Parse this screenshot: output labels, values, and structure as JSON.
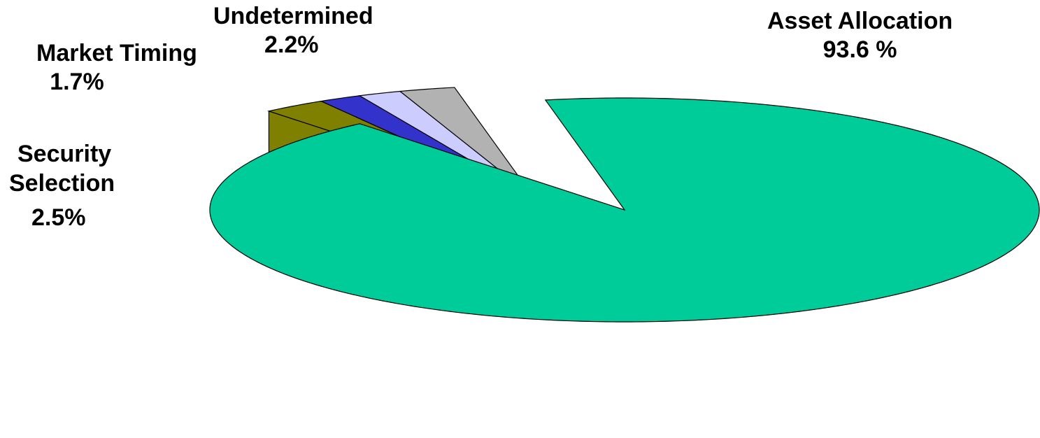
{
  "chart_data": {
    "type": "pie",
    "style": "3d-exploded",
    "slices": [
      {
        "label": "Asset Allocation",
        "value_text": "93.6 %",
        "value": 93.6,
        "color": "#00CC99",
        "side_color": "#EE9A22"
      },
      {
        "label": "Undetermined",
        "value_text": "2.2%",
        "value": 2.2,
        "color": "#B2B2B2",
        "side_color": "#7F7F7F"
      },
      {
        "label": "Market Timing",
        "value_text": "1.7%",
        "value": 1.7,
        "color": "#CCCCFF",
        "side_color": "#9999CC"
      },
      {
        "label": "",
        "value_text": "",
        "value": 1.7,
        "color": "#3333CC",
        "side_color": "#1F1F99"
      },
      {
        "label": "Security Selection",
        "value_text": "2.5%",
        "value": 2.5,
        "color": "#808000",
        "side_color": "#5F5F00"
      }
    ],
    "label_lines": {
      "security_selection": [
        "Security",
        "Selection"
      ]
    },
    "legend": "none"
  }
}
